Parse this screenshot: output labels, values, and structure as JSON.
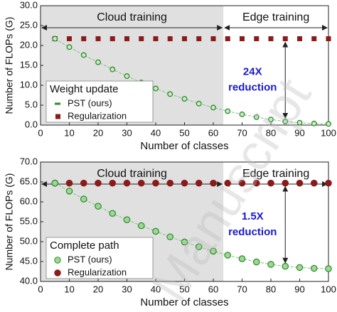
{
  "chart_data": [
    {
      "type": "scatter",
      "ylabel": "Number of FLOPs (G)",
      "xlabel": "Number of classes",
      "x": [
        5,
        10,
        15,
        20,
        25,
        30,
        35,
        40,
        45,
        50,
        55,
        60,
        65,
        70,
        75,
        80,
        85,
        90,
        95,
        100
      ],
      "series": [
        {
          "name": "PST (ours)",
          "color": "#2a8a2a",
          "marker": "dash",
          "line": true,
          "values": [
            21.7,
            19.6,
            17.6,
            15.8,
            14.0,
            12.3,
            10.7,
            9.2,
            7.8,
            6.6,
            5.4,
            4.4,
            3.5,
            2.7,
            2.0,
            1.4,
            0.9,
            0.6,
            0.4,
            0.3
          ]
        },
        {
          "name": "Regularization",
          "color": "#8b1a1a",
          "marker": "square",
          "line": false,
          "values": [
            21.7,
            21.7,
            21.7,
            21.7,
            21.7,
            21.7,
            21.7,
            21.7,
            21.7,
            21.7,
            21.7,
            21.7,
            21.7,
            21.7,
            21.7,
            21.7,
            21.7,
            21.7,
            21.7,
            21.7
          ]
        }
      ],
      "xlim": [
        0,
        100
      ],
      "xticks": [
        0,
        10,
        20,
        30,
        40,
        50,
        60,
        70,
        80,
        90,
        100
      ],
      "ylim": [
        0,
        30
      ],
      "yticks": [
        {
          "value": 0,
          "label": "0.0"
        },
        {
          "value": 5,
          "label": "5.0"
        },
        {
          "value": 10,
          "label": "10.0"
        },
        {
          "value": 15,
          "label": "15.0"
        },
        {
          "value": 20,
          "label": "20.0"
        },
        {
          "value": 25,
          "label": "25.0"
        },
        {
          "value": 30,
          "label": "30.0"
        }
      ],
      "legend_title": "Weight update",
      "legend_loc": "lower left",
      "regions": [
        {
          "label": "Cloud training",
          "x": [
            0,
            63.5
          ],
          "shade": "#e0e0e0"
        },
        {
          "label": "Edge training",
          "x": [
            63.5,
            100
          ]
        }
      ],
      "annotation": {
        "lines": [
          "24X",
          "reduction"
        ],
        "x": 85,
        "color": "#1a1acc"
      }
    },
    {
      "type": "scatter",
      "ylabel": "Number of FLOPs (G)",
      "xlabel": "Number of classes",
      "x": [
        5,
        10,
        15,
        20,
        25,
        30,
        35,
        40,
        45,
        50,
        55,
        60,
        65,
        70,
        75,
        80,
        85,
        90,
        95,
        100
      ],
      "series": [
        {
          "name": "PST (ours)",
          "color": "#2a8a2a",
          "marker": "circle",
          "line": true,
          "values": [
            64.7,
            62.7,
            60.7,
            58.9,
            57.1,
            55.5,
            54.0,
            52.6,
            51.2,
            49.9,
            48.7,
            47.6,
            46.6,
            45.7,
            44.9,
            44.3,
            43.8,
            43.5,
            43.3,
            43.2
          ]
        },
        {
          "name": "Regularization",
          "color": "#8b1a1a",
          "marker": "circle",
          "line": false,
          "values": [
            64.7,
            64.7,
            64.7,
            64.7,
            64.7,
            64.7,
            64.7,
            64.7,
            64.7,
            64.7,
            64.7,
            64.7,
            64.7,
            64.7,
            64.7,
            64.7,
            64.7,
            64.7,
            64.7,
            64.7
          ]
        }
      ],
      "xlim": [
        0,
        100
      ],
      "xticks": [
        0,
        10,
        20,
        30,
        40,
        50,
        60,
        70,
        80,
        90,
        100
      ],
      "ylim": [
        40,
        70
      ],
      "yticks": [
        {
          "value": 40,
          "label": "40.0"
        },
        {
          "value": 45,
          "label": "45.0"
        },
        {
          "value": 50,
          "label": "50.0"
        },
        {
          "value": 55,
          "label": "55.0"
        },
        {
          "value": 60,
          "label": "60.0"
        },
        {
          "value": 65,
          "label": "65.0"
        },
        {
          "value": 70,
          "label": "70.0"
        }
      ],
      "legend_title": "Complete path",
      "legend_loc": "lower left",
      "regions": [
        {
          "label": "Cloud training",
          "x": [
            0,
            63.5
          ],
          "shade": "#e0e0e0"
        },
        {
          "label": "Edge training",
          "x": [
            63.5,
            100
          ]
        }
      ],
      "annotation": {
        "lines": [
          "1.5X",
          "reduction"
        ],
        "x": 85,
        "color": "#1a1acc"
      }
    }
  ],
  "watermark": "Manuscript"
}
